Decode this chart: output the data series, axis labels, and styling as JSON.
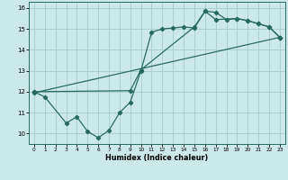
{
  "title": "",
  "xlabel": "Humidex (Indice chaleur)",
  "xlim": [
    -0.5,
    23.5
  ],
  "ylim": [
    9.5,
    16.3
  ],
  "yticks": [
    10,
    11,
    12,
    13,
    14,
    15,
    16
  ],
  "xticks": [
    0,
    1,
    2,
    3,
    4,
    5,
    6,
    7,
    8,
    9,
    10,
    11,
    12,
    13,
    14,
    15,
    16,
    17,
    18,
    19,
    20,
    21,
    22,
    23
  ],
  "bg_color": "#cce9e9",
  "grid_color": "#aad0d0",
  "line_color": "#276b5e",
  "line1_x": [
    0,
    1,
    3,
    4,
    5,
    6,
    7,
    8,
    9,
    10,
    11,
    12,
    13,
    14,
    15,
    16,
    17,
    18,
    19,
    20,
    21,
    22,
    23
  ],
  "line1_y": [
    12.0,
    11.75,
    10.5,
    10.8,
    10.1,
    9.8,
    10.15,
    11.0,
    11.5,
    13.0,
    14.85,
    15.0,
    15.05,
    15.1,
    15.05,
    15.85,
    15.8,
    15.45,
    15.5,
    15.4,
    15.25,
    15.1,
    14.6
  ],
  "line2_x": [
    0,
    9,
    10,
    15,
    16,
    17,
    19,
    20,
    21,
    22,
    23
  ],
  "line2_y": [
    12.0,
    12.05,
    13.05,
    15.1,
    15.85,
    15.45,
    15.5,
    15.4,
    15.25,
    15.1,
    14.6
  ],
  "line3_x": [
    0,
    23
  ],
  "line3_y": [
    11.95,
    14.6
  ]
}
